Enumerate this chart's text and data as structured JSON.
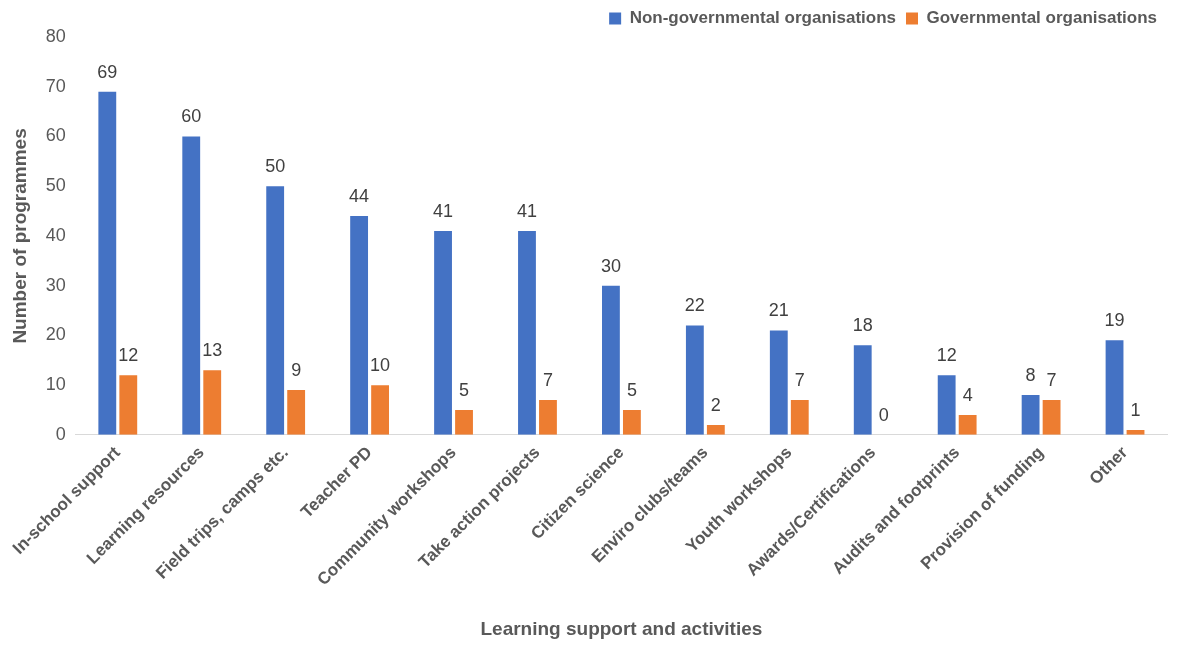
{
  "chart_data": {
    "type": "bar",
    "xlabel": "Learning support and activities",
    "ylabel": "Number of programmes",
    "categories": [
      "In-school support",
      "Learning resources",
      "Field trips, camps etc.",
      "Teacher PD",
      "Community workshops",
      "Take action projects",
      "Citizen science",
      "Enviro clubs/teams",
      "Youth workshops",
      "Awards/Certifications",
      "Audits and footprints",
      "Provision of funding",
      "Other"
    ],
    "series": [
      {
        "name": "Non-governmental organisations",
        "color": "#4472c4",
        "values": [
          69,
          60,
          50,
          44,
          41,
          41,
          30,
          22,
          21,
          18,
          12,
          8,
          19
        ]
      },
      {
        "name": "Governmental organisations",
        "color": "#ed7d31",
        "values": [
          12,
          13,
          9,
          10,
          5,
          7,
          5,
          2,
          7,
          0,
          4,
          7,
          1
        ]
      }
    ],
    "ylim": [
      0,
      80
    ],
    "yticks": [
      0,
      10,
      20,
      30,
      40,
      50,
      60,
      70,
      80
    ],
    "grid": false,
    "legend": "top right",
    "data_labels": true
  }
}
